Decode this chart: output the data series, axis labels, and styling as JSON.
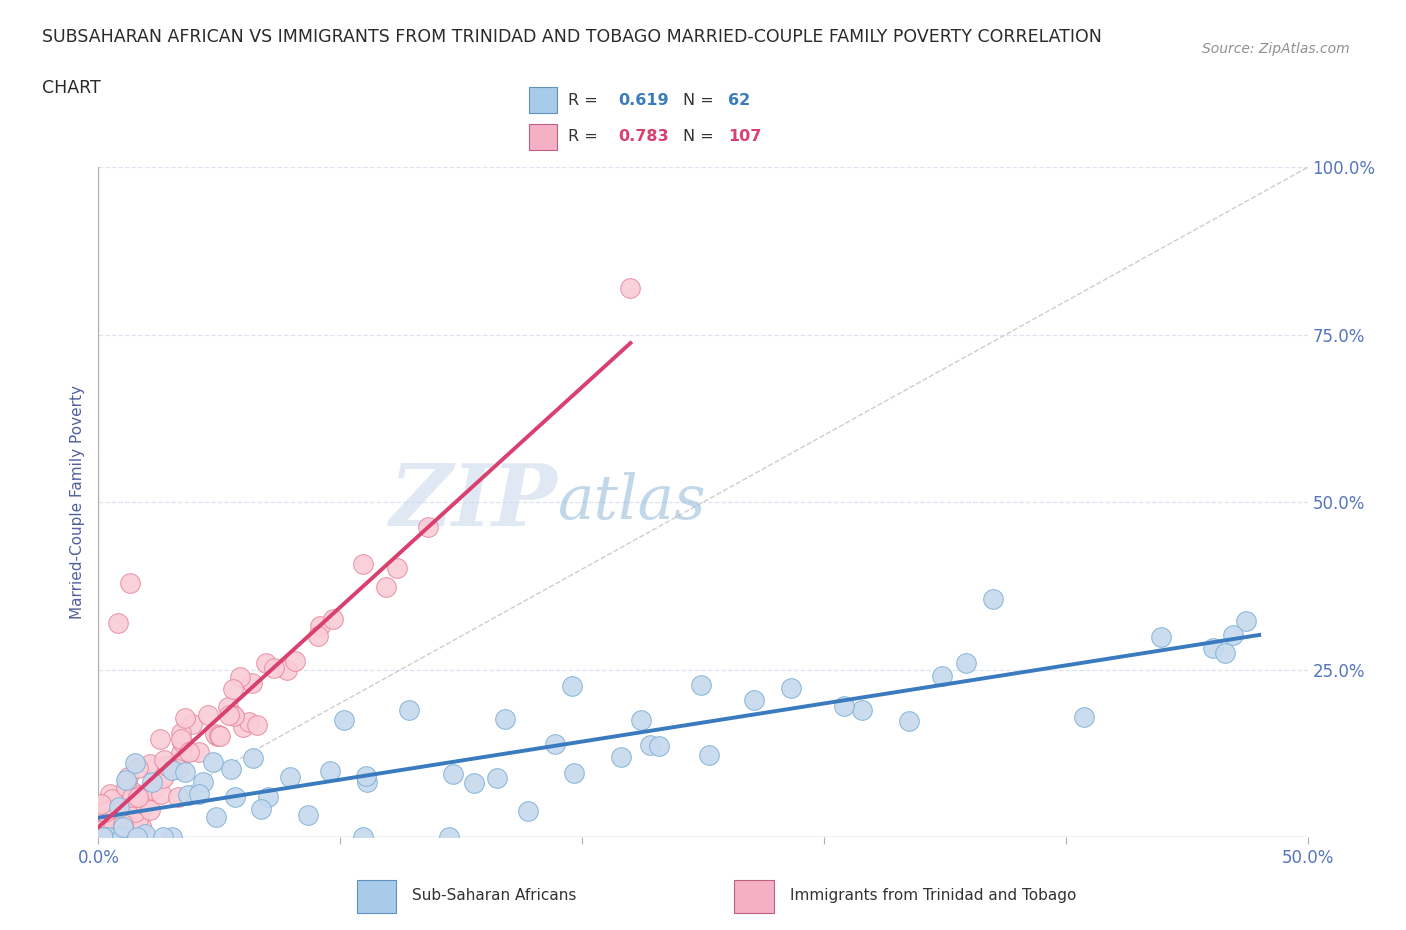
{
  "title_line1": "SUBSAHARAN AFRICAN VS IMMIGRANTS FROM TRINIDAD AND TOBAGO MARRIED-COUPLE FAMILY POVERTY CORRELATION",
  "title_line2": "CHART",
  "source_text": "Source: ZipAtlas.com",
  "ylabel_label": "Married-Couple Family Poverty",
  "xlim": [
    0.0,
    0.5
  ],
  "ylim": [
    0.0,
    1.0
  ],
  "xtick_values": [
    0.0,
    0.1,
    0.2,
    0.3,
    0.4,
    0.5
  ],
  "xtick_labels": [
    "0.0%",
    "",
    "",
    "",
    "",
    "50.0%"
  ],
  "ytick_values": [
    0.0,
    0.25,
    0.5,
    0.75,
    1.0
  ],
  "ytick_labels": [
    "",
    "25.0%",
    "50.0%",
    "75.0%",
    "100.0%"
  ],
  "series1_name": "Sub-Saharan Africans",
  "series1_color": "#c6d9ee",
  "series1_edge_color": "#7bafd4",
  "series1_R": 0.619,
  "series1_N": 62,
  "series2_name": "Immigrants from Trinidad and Tobago",
  "series2_color": "#f9ccd8",
  "series2_edge_color": "#e8859a",
  "series2_R": 0.783,
  "series2_N": 107,
  "legend_color1": "#a8cbea",
  "legend_color2": "#f4b0c4",
  "regression1_color": "#3a7bbf",
  "regression2_color": "#d94070",
  "reference_line_color": "#c8c8c8",
  "grid_color": "#dce4f0",
  "background_color": "#ffffff",
  "title_color": "#2a2a2a",
  "axis_label_color": "#5060a0",
  "tick_color": "#5575c0",
  "title_fontsize": 12.5,
  "source_fontsize": 10,
  "seed": 42
}
